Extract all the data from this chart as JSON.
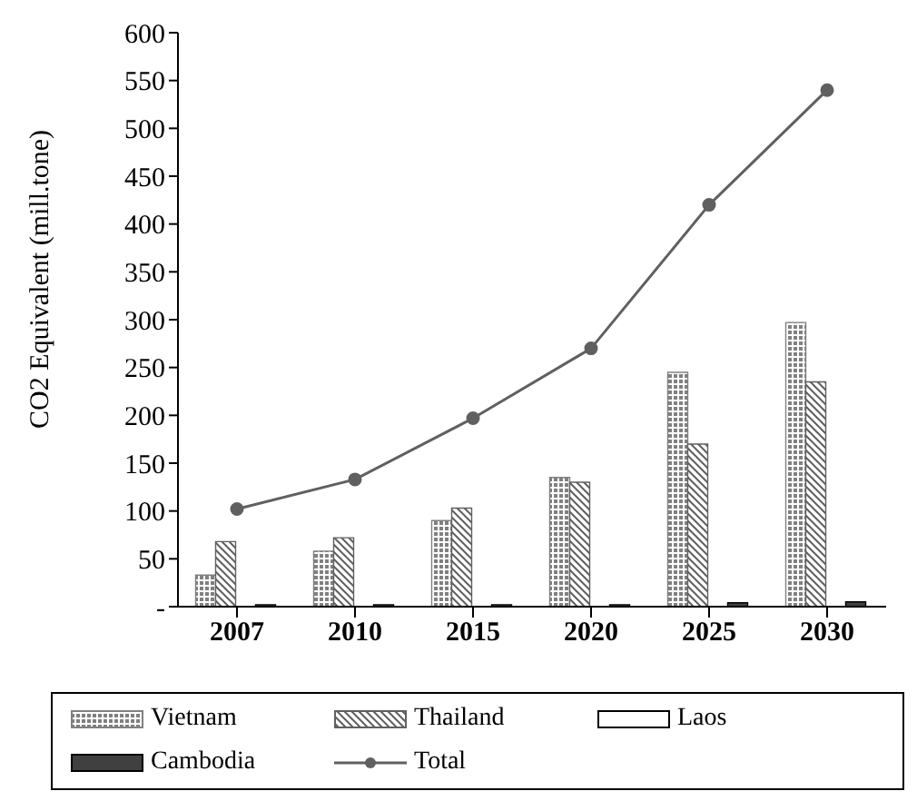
{
  "chart_data": {
    "type": "bar",
    "ylabel": "CO2 Equivalent (mill.tone)",
    "categories": [
      "2007",
      "2010",
      "2015",
      "2020",
      "2025",
      "2030"
    ],
    "series": [
      {
        "name": "Vietnam",
        "color": "#808080",
        "values": [
          33,
          58,
          90,
          135,
          245,
          297
        ]
      },
      {
        "name": "Thailand",
        "color": "#606060",
        "values": [
          68,
          72,
          103,
          130,
          170,
          235
        ]
      },
      {
        "name": "Laos",
        "color": "#ffffff",
        "values": [
          null,
          null,
          null,
          null,
          null,
          null
        ]
      },
      {
        "name": "Cambodia",
        "color": "#404040",
        "values": [
          2,
          2,
          2,
          2,
          4,
          5
        ]
      },
      {
        "name": "Total",
        "type": "line",
        "color": "#606060",
        "values": [
          102,
          133,
          197,
          270,
          420,
          540
        ]
      }
    ],
    "ylim": [
      0,
      600
    ],
    "yticks": [
      {
        "value": 0,
        "label": "-"
      },
      50,
      100,
      150,
      200,
      250,
      300,
      350,
      400,
      450,
      500,
      550,
      600
    ],
    "marker": "circle",
    "grid": false,
    "legend": "bottom"
  }
}
